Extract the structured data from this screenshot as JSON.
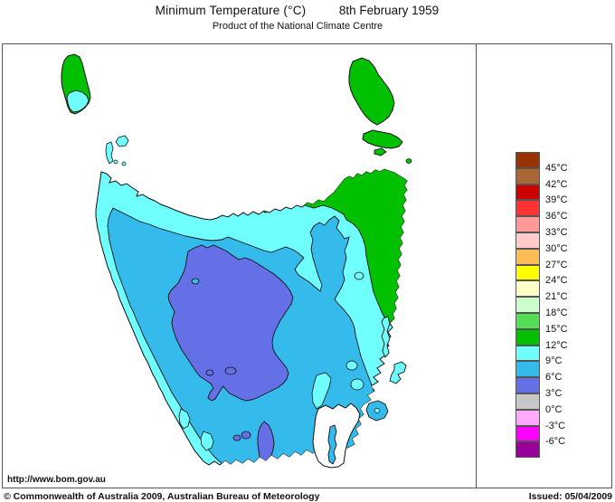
{
  "header": {
    "title": "Minimum Temperature (°C)",
    "date": "8th February 1959",
    "subtitle": "Product of the National Climate Centre"
  },
  "footer": {
    "url": "http://www.bom.gov.au",
    "copyright": "© Commonwealth of Australia 2009, Australian Bureau of Meteorology",
    "issued": "Issued: 05/04/2009"
  },
  "legend": {
    "entries": [
      {
        "color": "#993300",
        "label": "45°C"
      },
      {
        "color": "#AA6633",
        "label": "42°C"
      },
      {
        "color": "#CC0000",
        "label": "39°C"
      },
      {
        "color": "#FF3333",
        "label": "36°C"
      },
      {
        "color": "#FF9999",
        "label": "33°C"
      },
      {
        "color": "#FFCCCC",
        "label": "30°C"
      },
      {
        "color": "#FFBB55",
        "label": "27°C"
      },
      {
        "color": "#FFFF00",
        "label": "24°C"
      },
      {
        "color": "#FFFFC8",
        "label": "21°C"
      },
      {
        "color": "#CCFFCC",
        "label": "18°C"
      },
      {
        "color": "#55DD55",
        "label": "15°C"
      },
      {
        "color": "#00C000",
        "label": "12°C"
      },
      {
        "color": "#70FFFF",
        "label": "9°C"
      },
      {
        "color": "#35BBEB",
        "label": "6°C"
      },
      {
        "color": "#6670E6",
        "label": "3°C"
      },
      {
        "color": "#C8C8C8",
        "label": "0°C"
      },
      {
        "color": "#FFAAFF",
        "label": "-3°C"
      },
      {
        "color": "#FF00FF",
        "label": "-6°C"
      },
      {
        "color": "#990099",
        "label": ""
      }
    ]
  },
  "map": {
    "colors": {
      "green": "#00C000",
      "cyan": "#70FFFF",
      "skyblue": "#35BBEB",
      "periwinkle": "#6670E6",
      "sea": "#FFFFFF"
    },
    "bands_shown": [
      "3-6°C",
      "6-9°C",
      "9-12°C",
      "12-15°C"
    ]
  }
}
